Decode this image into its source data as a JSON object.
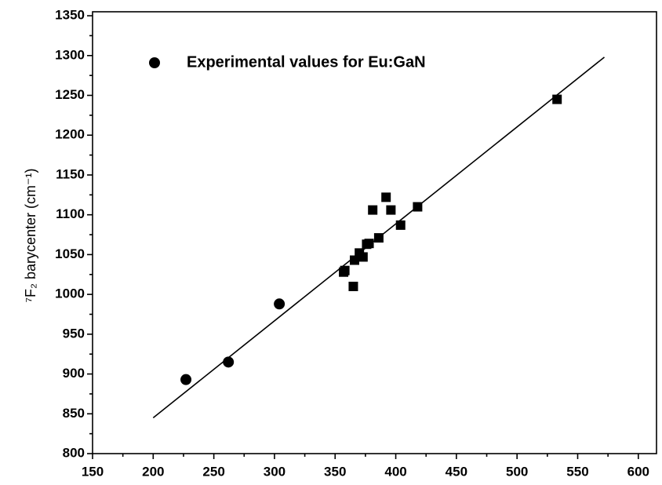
{
  "chart_data": {
    "type": "scatter",
    "y_label": "⁷F₂ barycenter (cm⁻¹)",
    "xlim": [
      150,
      615
    ],
    "ylim": [
      800,
      1355
    ],
    "xticks": [
      150,
      200,
      250,
      300,
      350,
      400,
      450,
      500,
      550,
      600
    ],
    "yticks": [
      800,
      850,
      900,
      950,
      1000,
      1050,
      1100,
      1150,
      1200,
      1250,
      1300,
      1350
    ],
    "minor_ticks": true,
    "legend": "upper left",
    "series": [
      {
        "name": "Experimental values for Eu:GaN",
        "marker": "circle",
        "color": "#000000",
        "x": [
          227,
          262,
          304
        ],
        "values": [
          893,
          915,
          988
        ]
      },
      {
        "marker": "square",
        "color": "#000000",
        "x": [
          357,
          358,
          365,
          366,
          370,
          373,
          376,
          378,
          381,
          386,
          392,
          396,
          404,
          418,
          533
        ],
        "values": [
          1028,
          1030,
          1010,
          1043,
          1052,
          1047,
          1063,
          1064,
          1106,
          1071,
          1122,
          1106,
          1087,
          1110,
          1245
        ]
      },
      {
        "marker": "line",
        "color": "#000000",
        "x": [
          200,
          572
        ],
        "values": [
          845,
          1298
        ]
      }
    ]
  }
}
